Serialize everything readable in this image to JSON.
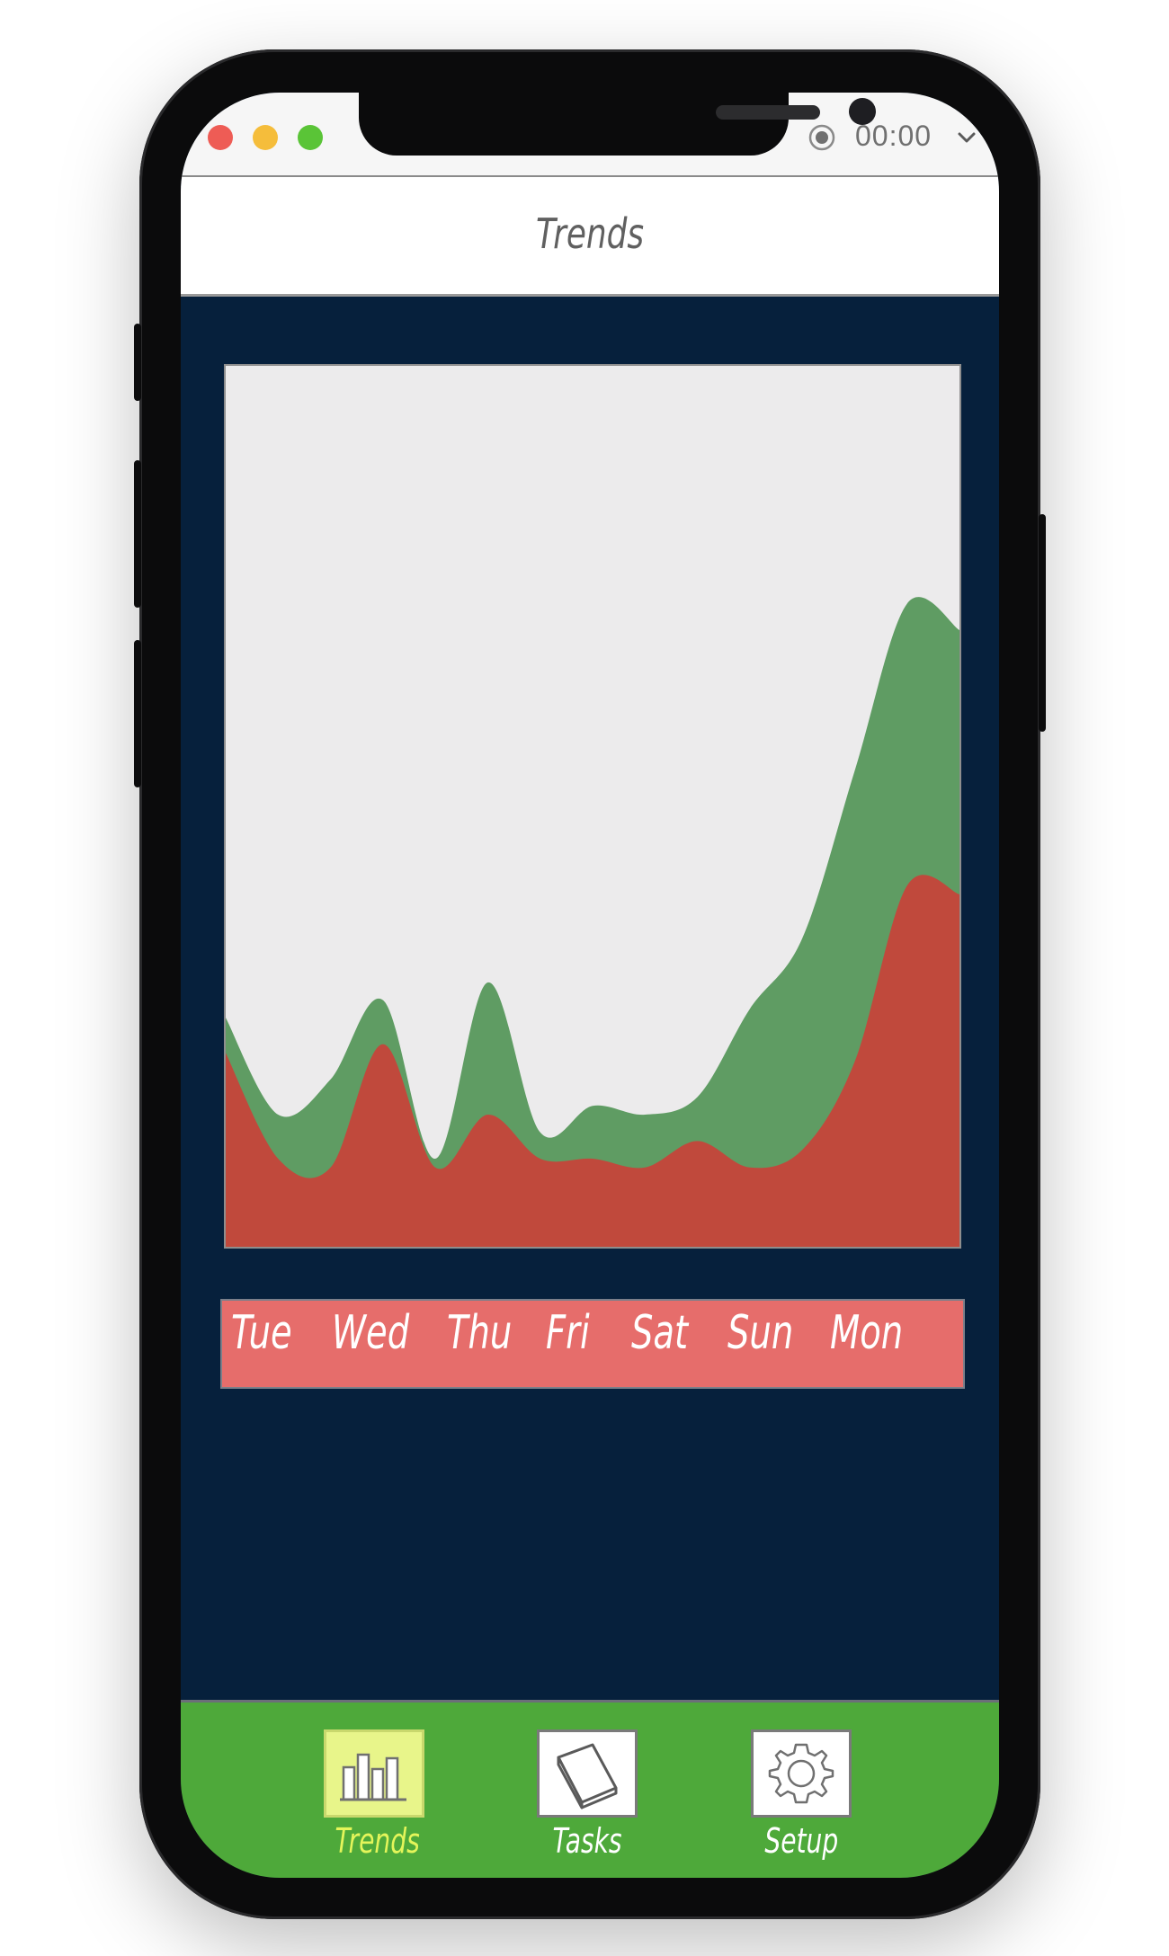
{
  "window": {
    "timer": "00:00",
    "record_icon": "record-icon",
    "chevron_icon": "chevron-down-icon"
  },
  "header": {
    "title": "Trends"
  },
  "colors": {
    "background": "#06203c",
    "chart_background": "#ecebec",
    "series_top": "#5f9c63",
    "series_bottom": "#c0493c",
    "days_bar": "#e66d6b",
    "tabbar": "#4ea93a",
    "active_tab_label": "#e4f55a"
  },
  "chart_data": {
    "type": "area",
    "stacked": true,
    "title": "",
    "xlabel": "",
    "ylabel": "",
    "x": [
      0,
      0.5,
      1,
      1.5,
      2,
      2.5,
      3,
      3.5,
      4,
      4.5,
      5,
      5.5,
      6,
      6.5,
      7
    ],
    "series": [
      {
        "color": "#c0493c",
        "values": [
          22,
          10,
          9,
          23,
          9,
          15,
          10,
          10,
          9,
          12,
          9,
          11,
          21,
          41,
          40
        ]
      },
      {
        "color": "#5f9c63",
        "values": [
          4,
          5,
          10,
          5,
          1,
          15,
          3,
          6,
          6,
          5,
          18,
          24,
          33,
          32,
          30
        ]
      }
    ],
    "ylim": [
      0,
      100
    ],
    "grid": false
  },
  "days": [
    "Tue",
    "Wed",
    "Thu",
    "Fri",
    "Sat",
    "Sun",
    "Mon"
  ],
  "tabs": [
    {
      "label": "Trends",
      "icon": "bar-chart-icon",
      "active": true
    },
    {
      "label": "Tasks",
      "icon": "notebook-icon",
      "active": false
    },
    {
      "label": "Setup",
      "icon": "gear-icon",
      "active": false
    }
  ]
}
